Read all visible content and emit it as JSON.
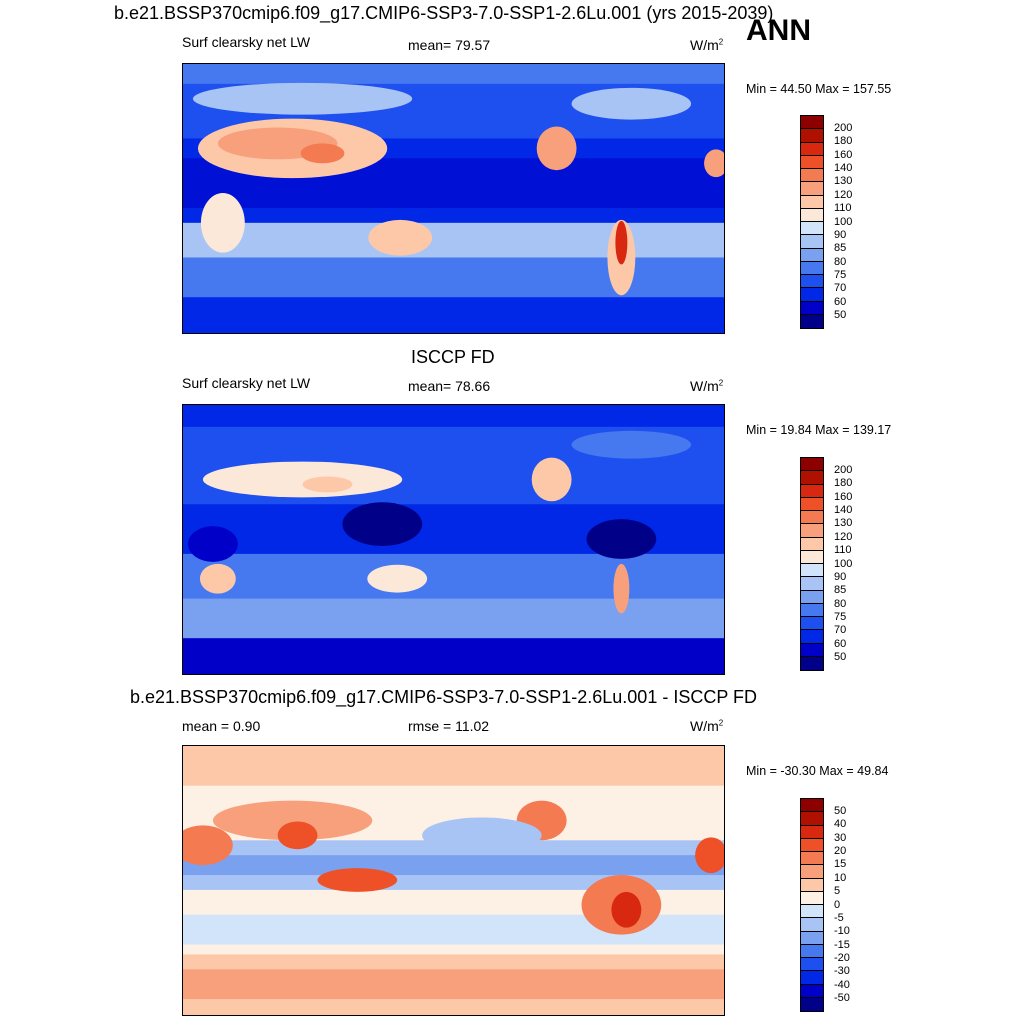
{
  "figure": {
    "season": "ANN"
  },
  "colors": {
    "abs_scale": [
      "#000088",
      "#0000c8",
      "#0028e6",
      "#1e50f0",
      "#4678f0",
      "#7aa0f0",
      "#a8c4f5",
      "#d2e4fa",
      "#fce8d8",
      "#fcc8a8",
      "#f8a07c",
      "#f47a52",
      "#ee5028",
      "#d82810",
      "#b01000",
      "#8c0000"
    ],
    "diff_scale": [
      "#000088",
      "#0000c8",
      "#0028e6",
      "#1e50f0",
      "#4678f0",
      "#7aa0f0",
      "#a8c4f5",
      "#d2e4fa",
      "#fdf0e4",
      "#fcc8a8",
      "#f8a07c",
      "#f47a52",
      "#ee5028",
      "#d82810",
      "#b01000",
      "#8c0000"
    ]
  },
  "panels": [
    {
      "title": "b.e21.BSSP370cmip6.f09_g17.CMIP6-SSP3-7.0-SSP1-2.6Lu.001 (yrs 2015-2039)",
      "variable": "Surf clearsky net LW",
      "stat_text": "mean=  79.57",
      "units": "W/m",
      "units_exp": "2",
      "minmax": "Min =  44.50 Max = 157.55",
      "colorbar_labels": [
        "200",
        "180",
        "160",
        "140",
        "130",
        "120",
        "110",
        "100",
        "90",
        "85",
        "80",
        "75",
        "70",
        "60",
        "50"
      ]
    },
    {
      "title": "ISCCP FD",
      "variable": "Surf clearsky net LW",
      "stat_text": "mean=  78.66",
      "units": "W/m",
      "units_exp": "2",
      "minmax": "Min =  19.84 Max = 139.17",
      "colorbar_labels": [
        "200",
        "180",
        "160",
        "140",
        "130",
        "120",
        "110",
        "100",
        "90",
        "85",
        "80",
        "75",
        "70",
        "60",
        "50"
      ]
    },
    {
      "title": "b.e21.BSSP370cmip6.f09_g17.CMIP6-SSP3-7.0-SSP1-2.6Lu.001 - ISCCP FD",
      "variable": "mean =   0.90",
      "stat_text": "rmse =  11.02",
      "units": "W/m",
      "units_exp": "2",
      "minmax": "Min = -30.30 Max =  49.84",
      "colorbar_labels": [
        "50",
        "40",
        "30",
        "20",
        "15",
        "10",
        "5",
        "0",
        "-5",
        "-10",
        "-15",
        "-20",
        "-30",
        "-40",
        "-50"
      ]
    }
  ]
}
